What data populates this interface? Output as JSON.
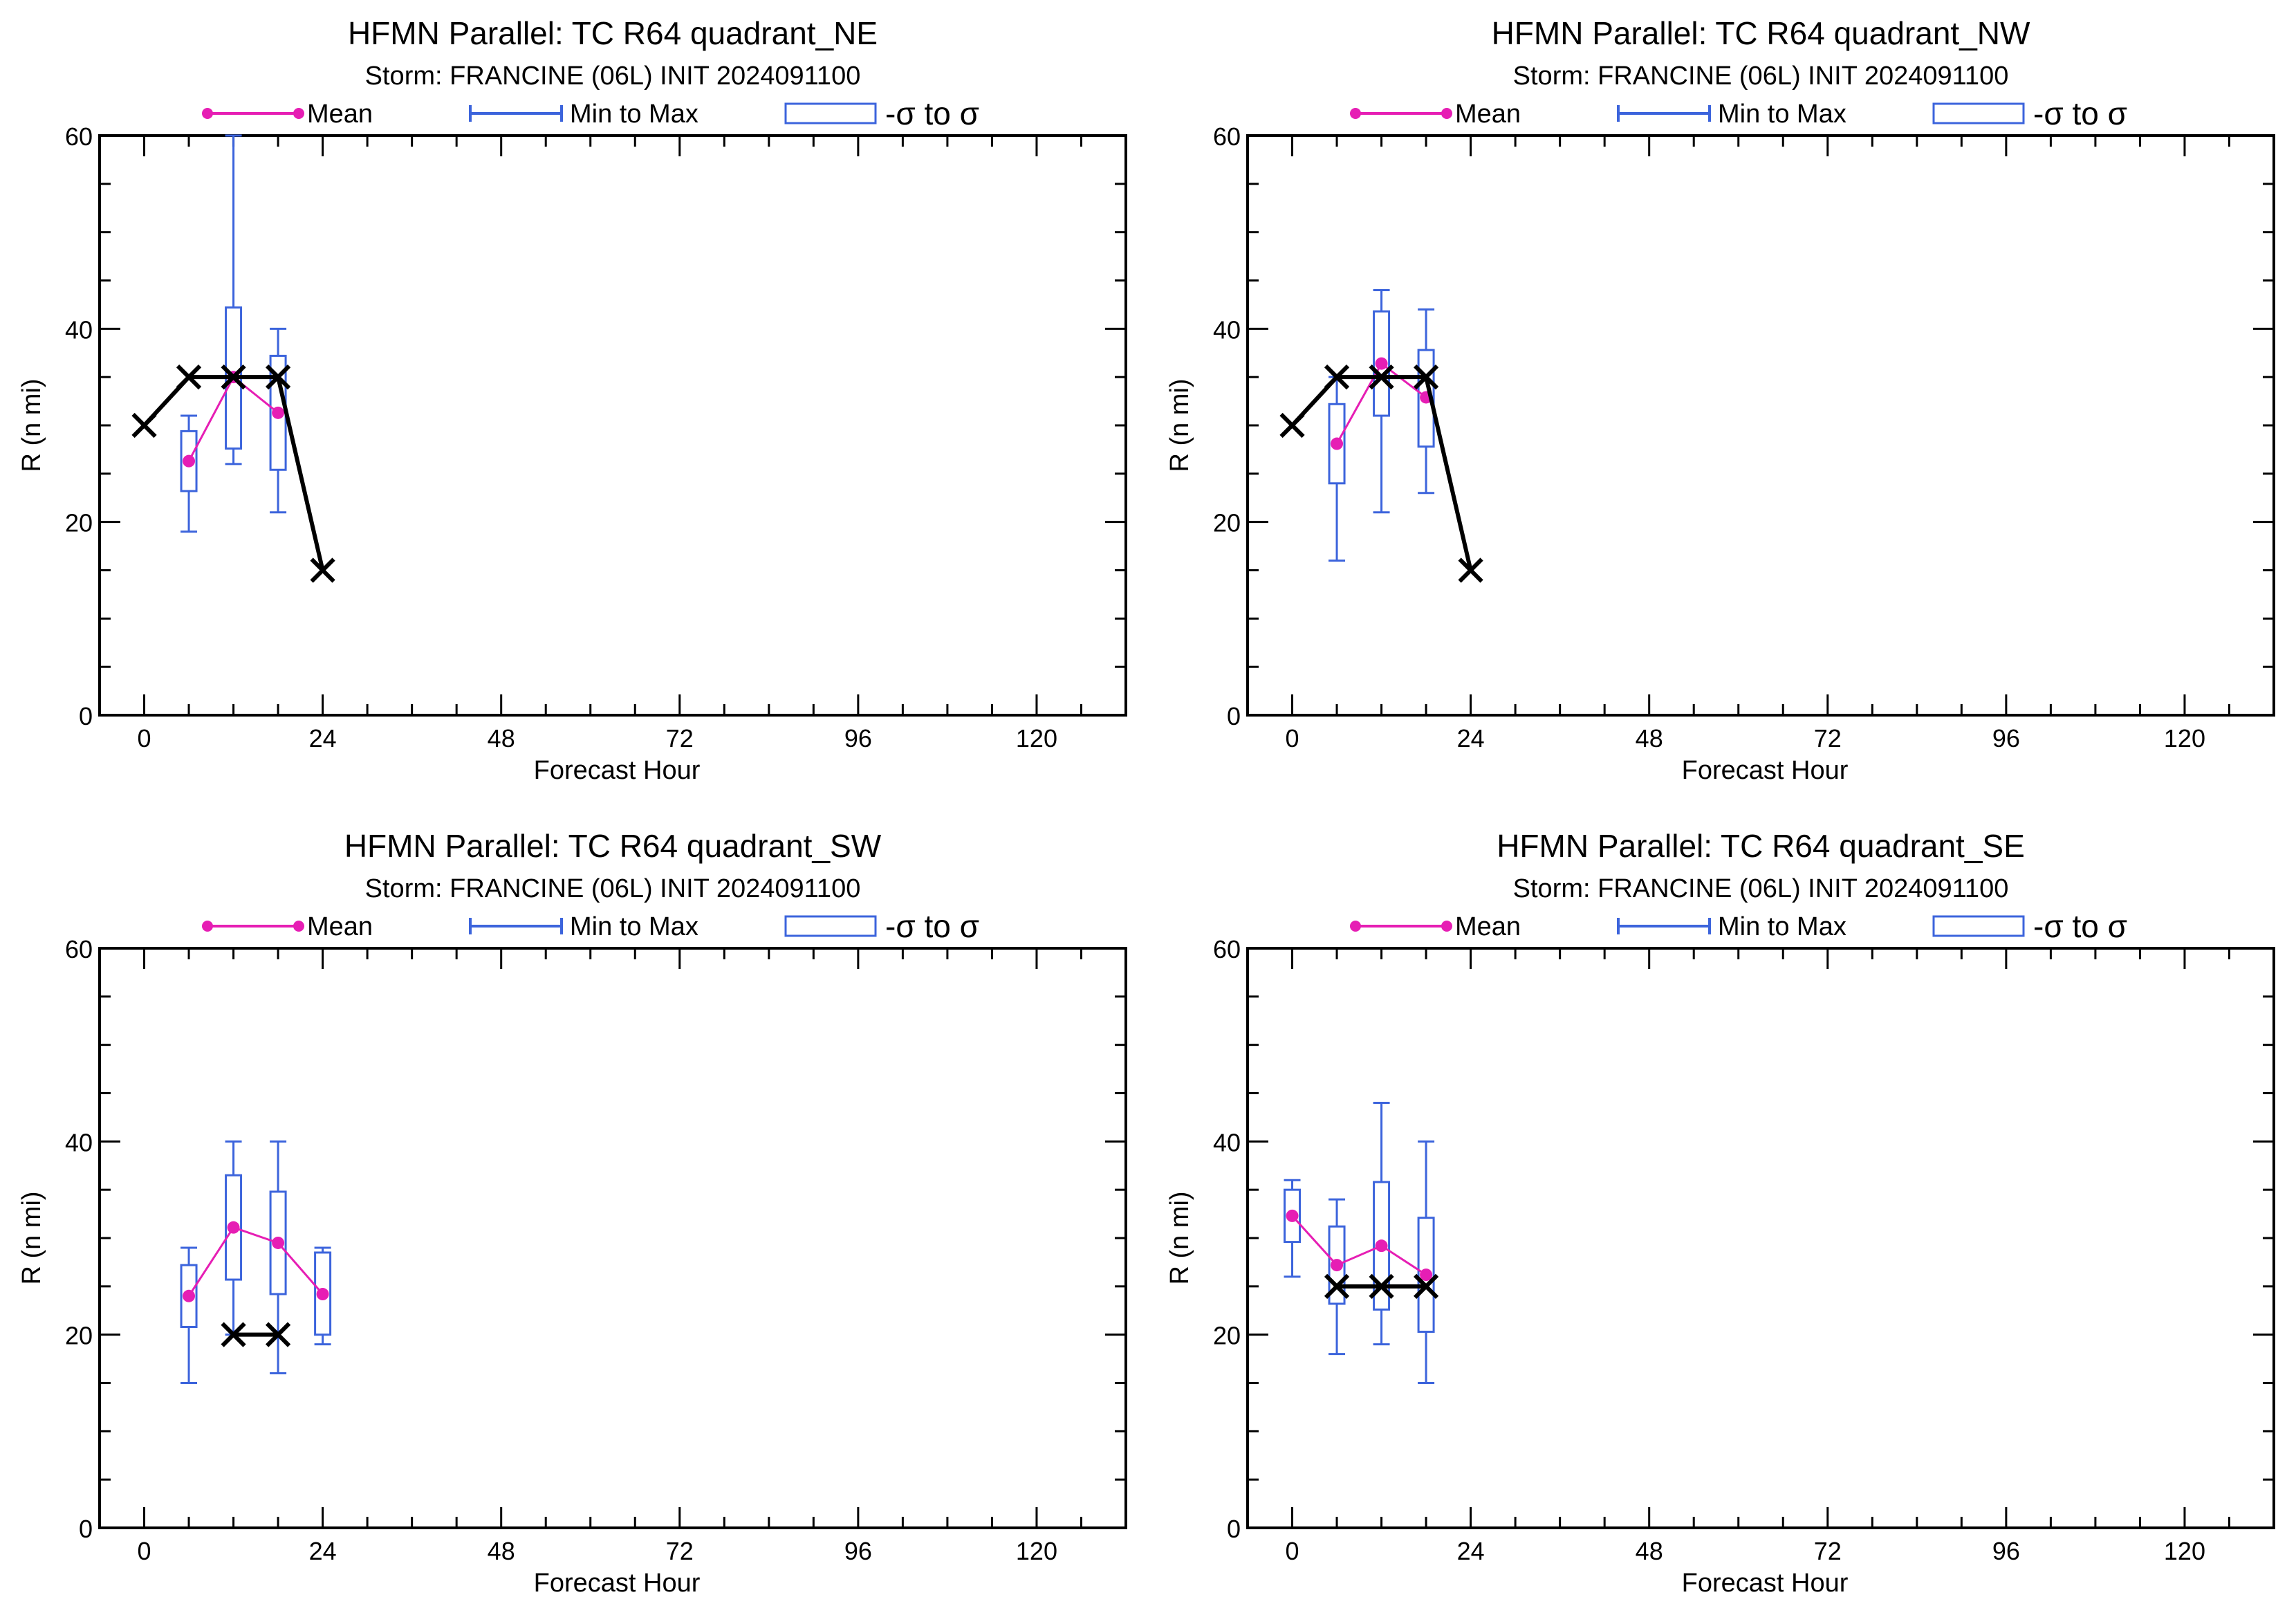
{
  "legend": {
    "mean": "Mean",
    "minmax": "Min to Max",
    "sigma": "-σ to σ"
  },
  "colors": {
    "mean": "#e61eb4",
    "box": "#3c64dc",
    "best_track": "#000000",
    "axes": "#000000"
  },
  "chart_data": [
    {
      "type": "box",
      "title": "HFMN Parallel: TC  R64 quadrant_NE",
      "subtitle": "Storm: FRANCINE (06L) INIT 2024091100",
      "xlabel": "Forecast Hour",
      "ylabel": "R (n mi)",
      "xlim": [
        -6,
        132
      ],
      "ylim": [
        0,
        60
      ],
      "xticks": [
        0,
        24,
        48,
        72,
        96,
        120
      ],
      "yticks": [
        0,
        20,
        40,
        60
      ],
      "grid": false,
      "legend_position": "top",
      "stats": [
        {
          "hour": 6,
          "min": 19,
          "q_low": 23.2,
          "mean": 26.3,
          "q_high": 29.4,
          "max": 31
        },
        {
          "hour": 12,
          "min": 26,
          "q_low": 27.6,
          "mean": 35,
          "q_high": 42.2,
          "max": 60
        },
        {
          "hour": 18,
          "min": 21,
          "q_low": 25.4,
          "mean": 31.3,
          "q_high": 37.2,
          "max": 40
        }
      ],
      "best_track": {
        "x": [
          0,
          6,
          12,
          18,
          24
        ],
        "y": [
          30,
          35,
          35,
          35,
          15
        ]
      }
    },
    {
      "type": "box",
      "title": "HFMN Parallel: TC  R64 quadrant_NW",
      "subtitle": "Storm: FRANCINE (06L) INIT 2024091100",
      "xlabel": "Forecast Hour",
      "ylabel": "R (n mi)",
      "xlim": [
        -6,
        132
      ],
      "ylim": [
        0,
        60
      ],
      "xticks": [
        0,
        24,
        48,
        72,
        96,
        120
      ],
      "yticks": [
        0,
        20,
        40,
        60
      ],
      "grid": false,
      "legend_position": "top",
      "stats": [
        {
          "hour": 6,
          "min": 16,
          "q_low": 24,
          "mean": 28.1,
          "q_high": 32.2,
          "max": 35
        },
        {
          "hour": 12,
          "min": 21,
          "q_low": 31,
          "mean": 36.4,
          "q_high": 41.8,
          "max": 44
        },
        {
          "hour": 18,
          "min": 23,
          "q_low": 27.8,
          "mean": 32.9,
          "q_high": 37.8,
          "max": 42
        }
      ],
      "best_track": {
        "x": [
          0,
          6,
          12,
          18,
          24
        ],
        "y": [
          30,
          35,
          35,
          35,
          15
        ]
      }
    },
    {
      "type": "box",
      "title": "HFMN Parallel: TC  R64 quadrant_SW",
      "subtitle": "Storm: FRANCINE (06L) INIT 2024091100",
      "xlabel": "Forecast Hour",
      "ylabel": "R (n mi)",
      "xlim": [
        -6,
        132
      ],
      "ylim": [
        0,
        60
      ],
      "xticks": [
        0,
        24,
        48,
        72,
        96,
        120
      ],
      "yticks": [
        0,
        20,
        40,
        60
      ],
      "grid": false,
      "legend_position": "top",
      "stats": [
        {
          "hour": 6,
          "min": 15,
          "q_low": 20.8,
          "mean": 24,
          "q_high": 27.2,
          "max": 29
        },
        {
          "hour": 12,
          "min": 20,
          "q_low": 25.7,
          "mean": 31.1,
          "q_high": 36.5,
          "max": 40
        },
        {
          "hour": 18,
          "min": 16,
          "q_low": 24.2,
          "mean": 29.5,
          "q_high": 34.8,
          "max": 40
        },
        {
          "hour": 24,
          "min": 19,
          "q_low": 20,
          "mean": 24.2,
          "q_high": 28.5,
          "max": 29
        }
      ],
      "best_track": {
        "x": [
          12,
          18
        ],
        "y": [
          20,
          20
        ]
      }
    },
    {
      "type": "box",
      "title": "HFMN Parallel: TC  R64 quadrant_SE",
      "subtitle": "Storm: FRANCINE (06L) INIT 2024091100",
      "xlabel": "Forecast Hour",
      "ylabel": "R (n mi)",
      "xlim": [
        -6,
        132
      ],
      "ylim": [
        0,
        60
      ],
      "xticks": [
        0,
        24,
        48,
        72,
        96,
        120
      ],
      "yticks": [
        0,
        20,
        40,
        60
      ],
      "grid": false,
      "legend_position": "top",
      "stats": [
        {
          "hour": 0,
          "min": 26,
          "q_low": 29.6,
          "mean": 32.3,
          "q_high": 35,
          "max": 36
        },
        {
          "hour": 6,
          "min": 18,
          "q_low": 23.2,
          "mean": 27.2,
          "q_high": 31.2,
          "max": 34
        },
        {
          "hour": 12,
          "min": 19,
          "q_low": 22.6,
          "mean": 29.2,
          "q_high": 35.8,
          "max": 44
        },
        {
          "hour": 18,
          "min": 15,
          "q_low": 20.3,
          "mean": 26.2,
          "q_high": 32.1,
          "max": 40
        }
      ],
      "best_track": {
        "x": [
          6,
          12,
          18
        ],
        "y": [
          25,
          25,
          25
        ]
      }
    }
  ]
}
